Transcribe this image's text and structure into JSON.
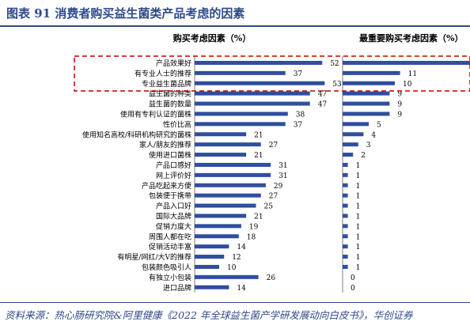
{
  "figure": {
    "title": "图表 91   消费者购买益生菌类产品考虑的因素",
    "source": "资料来源：热心肠研究院&阿里健康《2022 年全球益生菌产学研发展动向白皮书》，华创证券"
  },
  "colors": {
    "bar": "#2f4ea0",
    "axis": "#7f7f7f",
    "highlight_box": "#c00000",
    "title": "#2f4a8a",
    "text": "#000000"
  },
  "chart_data": [
    {
      "type": "bar",
      "orientation": "horizontal",
      "title": "购买考虑因素（%）",
      "categories": [
        "产品效果好",
        "有专业人士的推荐",
        "专业益生菌品牌",
        "益生菌的种类",
        "益生菌的数量",
        "使用有专利认证的菌株",
        "性价比高",
        "使用知名高校/科研机构研究的菌株",
        "家人/朋友的推荐",
        "使用进口菌株",
        "产品口感好",
        "网上评价好",
        "产品吃起来方便",
        "包装便于携带",
        "产品入口好",
        "国际大品牌",
        "促销力度大",
        "周围人都在吃",
        "促销活动丰富",
        "有明星/网红/大V的推荐",
        "包装颜色吸引人",
        "有独立小包装",
        "进口品牌"
      ],
      "values": [
        52,
        37,
        53,
        47,
        47,
        38,
        37,
        21,
        27,
        21,
        31,
        31,
        29,
        27,
        25,
        21,
        19,
        18,
        14,
        12,
        10,
        26,
        14
      ],
      "xlim": [
        0,
        60
      ],
      "highlighted": [
        "产品效果好",
        "有专业人士的推荐",
        "专业益生菌品牌"
      ]
    },
    {
      "type": "bar",
      "orientation": "horizontal",
      "title": "最重要购买考虑因素（%）",
      "categories": [
        "产品效果好",
        "有专业人士的推荐",
        "专业益生菌品牌",
        "益生菌的种类",
        "益生菌的数量",
        "使用有专利认证的菌株",
        "性价比高",
        "使用知名高校/科研机构研究的菌株",
        "家人/朋友的推荐",
        "使用进口菌株",
        "产品口感好",
        "网上评价好",
        "产品吃起来方便",
        "包装便于携带",
        "产品入口好",
        "国际大品牌",
        "促销力度大",
        "周围人都在吃",
        "促销活动丰富",
        "有明星/网红/大V的推荐",
        "包装颜色吸引人",
        "有独立小包装",
        "进口品牌"
      ],
      "values": [
        null,
        11,
        10,
        9,
        9,
        9,
        5,
        4,
        3,
        2,
        1,
        1,
        1,
        1,
        1,
        1,
        1,
        1,
        1,
        1,
        1,
        0,
        0
      ],
      "value_labels": [
        "",
        "11",
        "10",
        "9",
        "9",
        "9",
        "5",
        "4",
        "3",
        "2",
        "1",
        "1",
        "1",
        "1",
        "1",
        "1",
        "1",
        "1",
        "1",
        "1",
        "1",
        "0",
        "0"
      ],
      "xlim": [
        0,
        24
      ]
    }
  ]
}
